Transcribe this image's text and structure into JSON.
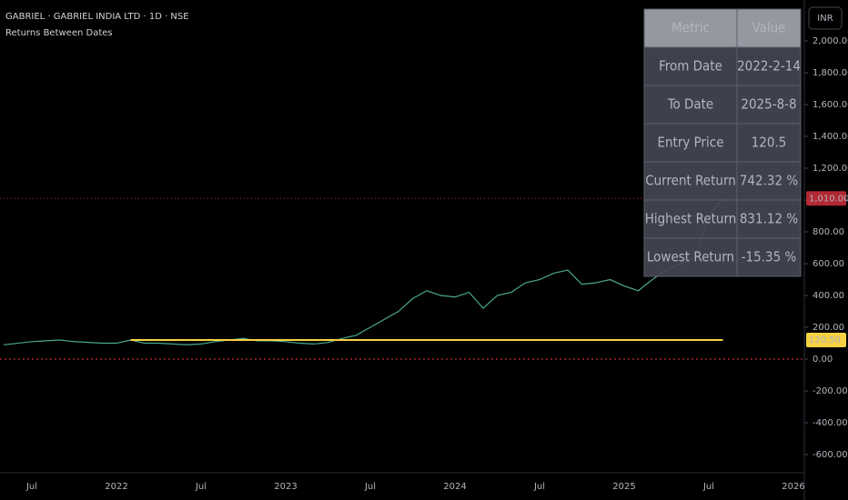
{
  "header": {
    "symbol": "GABRIEL · GABRIEL INDIA LTD · 1D · NSE",
    "indicator": "Returns Between Dates",
    "currency": "INR"
  },
  "chart_data": {
    "type": "line",
    "categories": [
      null,
      null,
      "Jul",
      null,
      null,
      null,
      null,
      null,
      "2022",
      null,
      null,
      null,
      null,
      null,
      "Jul",
      null,
      null,
      null,
      null,
      null,
      "2023",
      null,
      null,
      null,
      null,
      null,
      "Jul",
      null,
      null,
      null,
      null,
      null,
      "2024",
      null,
      null,
      null,
      null,
      null,
      "Jul",
      null,
      null,
      null,
      null,
      null,
      "2025",
      null,
      null,
      null,
      null,
      null,
      "Jul",
      null,
      null,
      null,
      null,
      null,
      "2026"
    ],
    "series": [
      {
        "name": "GABRIEL",
        "color": "#4aa88a",
        "values": [
          90,
          100,
          110,
          115,
          120,
          110,
          105,
          100,
          100,
          120,
          100,
          100,
          95,
          90,
          95,
          110,
          120,
          130,
          115,
          115,
          110,
          100,
          95,
          105,
          130,
          150,
          200,
          250,
          300,
          380,
          430,
          400,
          390,
          420,
          320,
          400,
          420,
          480,
          500,
          540,
          560,
          470,
          480,
          500,
          460,
          430,
          500,
          560,
          600,
          640,
          900,
          1010,
          null,
          null,
          null,
          null,
          null
        ]
      }
    ],
    "ylim": [
      -714,
      2200
    ],
    "yticks": [
      {
        "value": -600,
        "label": "-600.00"
      },
      {
        "value": -400,
        "label": "-400.00"
      },
      {
        "value": -200,
        "label": "-200.00"
      },
      {
        "value": 0,
        "label": "0.00"
      },
      {
        "value": 200,
        "label": "200.00"
      },
      {
        "value": 400,
        "label": "400.00"
      },
      {
        "value": 600,
        "label": "600.00"
      },
      {
        "value": 800,
        "label": "800.00"
      },
      {
        "value": 1000,
        "label": "1,000.00"
      },
      {
        "value": 1200,
        "label": "1,200.00"
      },
      {
        "value": 1400,
        "label": "1,400.00"
      },
      {
        "value": 1600,
        "label": "1,600.00"
      },
      {
        "value": 1800,
        "label": "1,800.00"
      },
      {
        "value": 2000,
        "label": "2,000.00"
      }
    ],
    "last_price": {
      "value": 1010,
      "label": "1,010.00",
      "color": "#b22833"
    },
    "entry_price": {
      "value": 120.5,
      "label": "120.50",
      "color": "#f5d142",
      "from_index": 9
    },
    "zero_line_color": "#f23645"
  },
  "table": {
    "header": [
      "Metric",
      "Value"
    ],
    "rows": [
      [
        "From Date",
        "2022-2-14"
      ],
      [
        "To Date",
        "2025-8-8"
      ],
      [
        "Entry Price",
        "120.5"
      ],
      [
        "Current Return",
        "742.32 %"
      ],
      [
        "Highest Return",
        "831.12 %"
      ],
      [
        "Lowest Return",
        "-15.35 %"
      ]
    ],
    "value_colors": [
      "#f7a21b",
      "#f7a21b",
      "#f5d142",
      "#4caf50",
      "#26a69a",
      "#f23645"
    ]
  }
}
